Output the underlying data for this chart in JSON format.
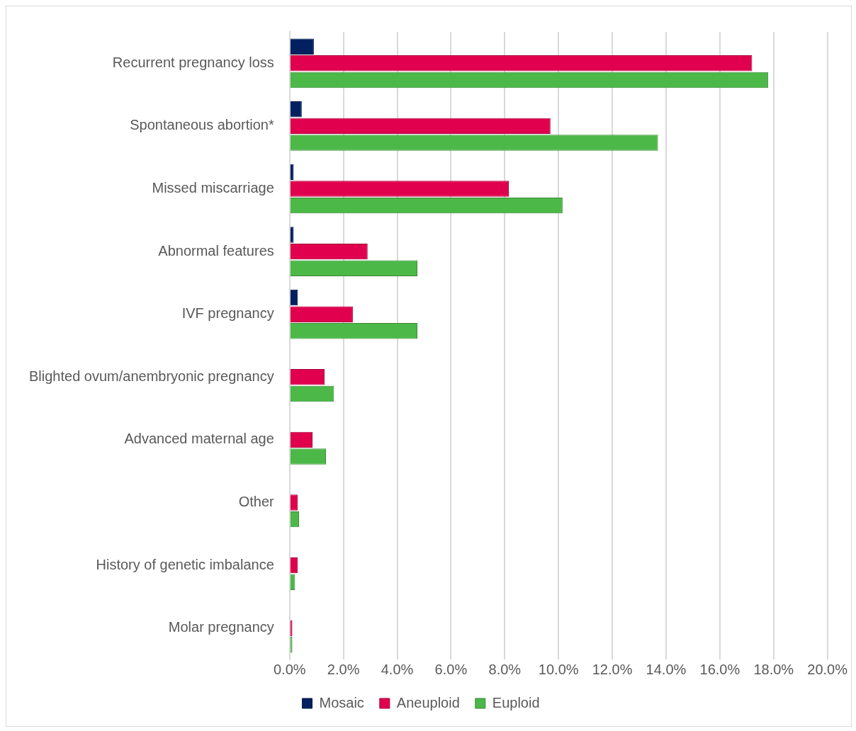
{
  "chart_data": {
    "type": "bar",
    "orientation": "horizontal",
    "categories": [
      "Recurrent pregnancy loss",
      "Spontaneous abortion*",
      "Missed miscarriage",
      "Abnormal features",
      "IVF pregnancy",
      "Blighted ovum/anembryonic pregnancy",
      "Advanced maternal age",
      "Other",
      "History of genetic imbalance",
      "Molar pregnancy"
    ],
    "series": [
      {
        "name": "Mosaic",
        "color": "#002060",
        "values": [
          0.9,
          0.45,
          0.15,
          0.15,
          0.3,
          null,
          null,
          null,
          null,
          null
        ]
      },
      {
        "name": "Aneuploid",
        "color": "#e0004d",
        "values": [
          17.2,
          9.7,
          8.15,
          2.9,
          2.35,
          1.3,
          0.85,
          0.3,
          0.3,
          0.1
        ]
      },
      {
        "name": "Euploid",
        "color": "#4cb848",
        "values": [
          17.8,
          13.7,
          10.15,
          4.75,
          4.75,
          1.65,
          1.35,
          0.35,
          0.2,
          0.1
        ]
      }
    ],
    "xlim": [
      0,
      20
    ],
    "xticks": [
      {
        "value": 0,
        "label": "0.0%"
      },
      {
        "value": 2,
        "label": "2.0%"
      },
      {
        "value": 4,
        "label": "4.0%"
      },
      {
        "value": 6,
        "label": "6.0%"
      },
      {
        "value": 8,
        "label": "8.0%"
      },
      {
        "value": 10,
        "label": "10.0%"
      },
      {
        "value": 12,
        "label": "12.0%"
      },
      {
        "value": 14,
        "label": "14.0%"
      },
      {
        "value": 16,
        "label": "16.0%"
      },
      {
        "value": 18,
        "label": "18.0%"
      },
      {
        "value": 20,
        "label": "20.0%"
      }
    ],
    "grid": "x",
    "legend": "bottom"
  }
}
